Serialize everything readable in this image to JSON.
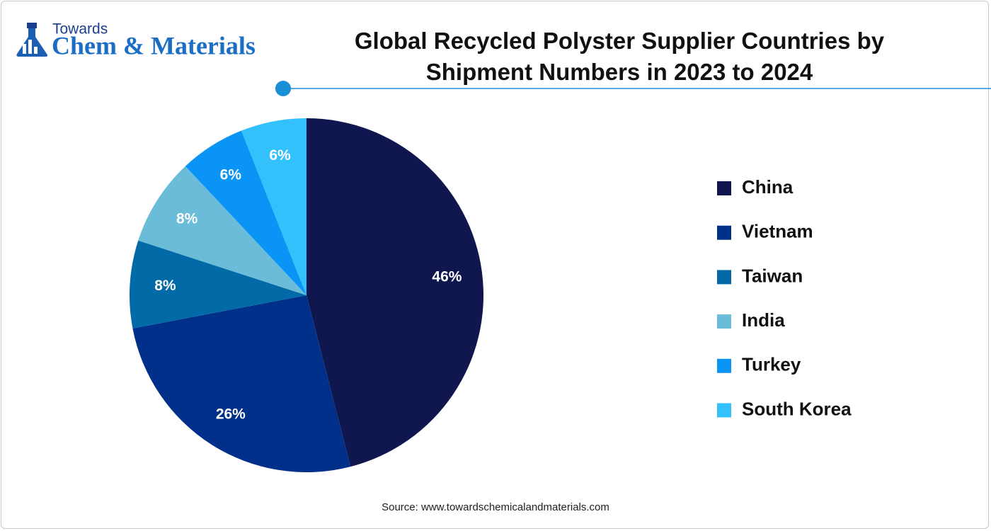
{
  "logo": {
    "top": "Towards",
    "main": "Chem & Materials"
  },
  "chart_data": {
    "type": "pie",
    "title": "Global Recycled Polyster Supplier Countries by Shipment Numbers in 2023 to 2024",
    "categories": [
      "China",
      "Vietnam",
      "Taiwan",
      "India",
      "Turkey",
      "South Korea"
    ],
    "values": [
      46,
      26,
      8,
      8,
      6,
      6
    ],
    "value_labels": [
      "46%",
      "26%",
      "8%",
      "8%",
      "6%",
      "6%"
    ],
    "colors": [
      "#10174f",
      "#00308a",
      "#026aa6",
      "#6bbcd9",
      "#0a94f5",
      "#33c1fc"
    ],
    "legend": "right",
    "source": "Source: www.towardschemicalandmaterials.com"
  }
}
